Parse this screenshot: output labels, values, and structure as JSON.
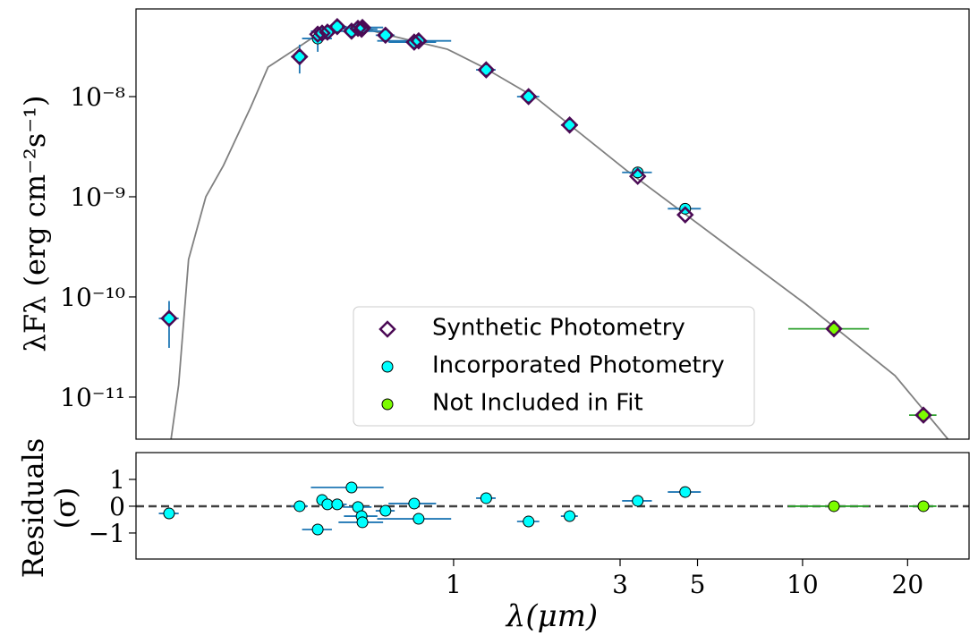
{
  "chart_data": [
    {
      "type": "scatter",
      "ylabel": "λFλ (erg cm⁻²s⁻¹)",
      "log_x": true,
      "log_y": true,
      "xlim": [
        0.123,
        30
      ],
      "ylim": [
        3.8e-12,
        7.5e-08
      ],
      "yticks": [
        {
          "value": 1e-08,
          "label": "10⁻⁸"
        },
        {
          "value": 1e-09,
          "label": "10⁻⁹"
        },
        {
          "value": 1e-10,
          "label": "10⁻¹⁰"
        },
        {
          "value": 1e-11,
          "label": "10⁻¹¹"
        }
      ],
      "legend": "lower center",
      "model": {
        "color": "#808080",
        "x": [
          0.155,
          0.163,
          0.174,
          0.195,
          0.219,
          0.262,
          0.294,
          0.352,
          0.42,
          0.532,
          0.635,
          0.96,
          1.215,
          1.73,
          3.12,
          5.64,
          10.2,
          18.4,
          26.1
        ],
        "values": [
          3.8e-12,
          1.33e-11,
          2.37e-10,
          1e-09,
          2.05e-09,
          7.8e-09,
          1.97e-08,
          2.97e-08,
          4.49e-08,
          4.97e-08,
          4.2e-08,
          2.97e-08,
          1.97e-08,
          9.6e-09,
          1.85e-09,
          3.96e-10,
          8.5e-11,
          1.64e-11,
          3.8e-12
        ]
      },
      "series": [
        {
          "name": "Synthetic Photometry",
          "color": "#4b0a55",
          "marker": "diamond",
          "x": [
            0.153,
            0.362,
            0.408,
            0.42,
            0.435,
            0.464,
            0.51,
            0.532,
            0.545,
            0.548,
            0.638,
            0.771,
            0.794,
            1.24,
            1.64,
            2.15,
            3.37,
            4.61,
            12.3,
            22.2
          ],
          "values": [
            6.1e-11,
            2.5e-08,
            4.2e-08,
            4.3e-08,
            4.4e-08,
            5e-08,
            4.5e-08,
            4.8e-08,
            4.7e-08,
            4.9e-08,
            4.1e-08,
            3.5e-08,
            3.6e-08,
            1.85e-08,
            1e-08,
            5.2e-09,
            1.6e-09,
            6.6e-10,
            4.8e-11,
            6.6e-12
          ]
        },
        {
          "name": "Incorporated Photometry",
          "color": "#00ffff",
          "marker": "circle",
          "errcolor": "#1f77b4",
          "x": [
            0.153,
            0.362,
            0.408,
            0.42,
            0.435,
            0.464,
            0.51,
            0.532,
            0.545,
            0.548,
            0.638,
            0.771,
            0.794,
            1.24,
            1.64,
            2.15,
            3.37,
            4.61
          ],
          "values": [
            6.1e-11,
            2.5e-08,
            3.8e-08,
            4.3e-08,
            4.4e-08,
            5e-08,
            4.5e-08,
            4.8e-08,
            4.7e-08,
            4.9e-08,
            4.1e-08,
            3.5e-08,
            3.6e-08,
            1.85e-08,
            1e-08,
            5.2e-09,
            1.75e-09,
            7.6e-10
          ],
          "xerr": [
            0.01,
            0.02,
            0.04,
            0.01,
            0.02,
            0.03,
            0.12,
            0.05,
            0.06,
            0.08,
            0.04,
            0.12,
            0.19,
            0.08,
            0.12,
            0.12,
            0.33,
            0.5
          ],
          "yerr": [
            3e-11,
            8e-09,
            1e-08,
            null,
            null,
            null,
            null,
            null,
            null,
            null,
            null,
            null,
            null,
            null,
            null,
            null,
            null,
            null
          ]
        },
        {
          "name": "Not Included in Fit",
          "color": "#7cfc00",
          "marker": "circle",
          "errcolor": "#2ca02c",
          "x": [
            12.3,
            22.2
          ],
          "values": [
            4.8e-11,
            6.6e-12
          ],
          "xerr": [
            3.2,
            2.0
          ]
        }
      ]
    },
    {
      "type": "scatter",
      "ylabel": [
        "Residuals",
        "(σ)"
      ],
      "xlabel": "λ(μm)",
      "log_x": true,
      "xlim": [
        0.123,
        30
      ],
      "ylim": [
        -1.97,
        2
      ],
      "xticks": [
        1,
        3,
        5,
        10,
        20
      ],
      "yticks": [
        1,
        0,
        {
          "value": -1,
          "label": "−1"
        }
      ],
      "hline": 0,
      "series": [
        {
          "color": "#00ffff",
          "errcolor": "#1f77b4",
          "x": [
            0.153,
            0.362,
            0.408,
            0.42,
            0.435,
            0.464,
            0.51,
            0.532,
            0.545,
            0.548,
            0.638,
            0.771,
            0.794,
            1.24,
            1.64,
            2.15,
            3.37,
            4.61
          ],
          "values": [
            -0.27,
            0,
            -0.87,
            0.23,
            0.07,
            0.07,
            0.7,
            -0.03,
            -0.37,
            -0.6,
            -0.17,
            0.1,
            -0.47,
            0.3,
            -0.57,
            -0.37,
            0.2,
            0.53
          ],
          "xerr": [
            0.01,
            0.02,
            0.04,
            0.01,
            0.02,
            0.03,
            0.12,
            0.05,
            0.06,
            0.08,
            0.04,
            0.12,
            0.19,
            0.08,
            0.12,
            0.12,
            0.33,
            0.5
          ]
        },
        {
          "color": "#7cfc00",
          "errcolor": "#2ca02c",
          "x": [
            12.3,
            22.2
          ],
          "values": [
            0,
            0
          ],
          "xerr": [
            3.2,
            2.0
          ]
        }
      ]
    }
  ]
}
